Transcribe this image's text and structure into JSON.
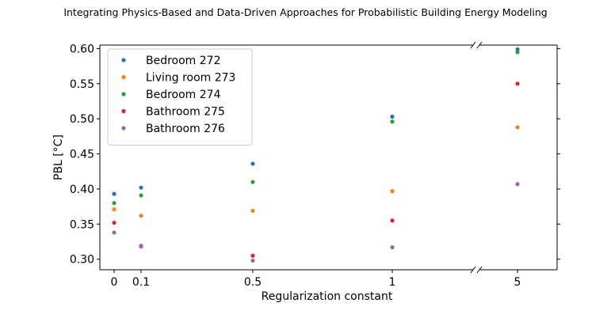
{
  "header": {
    "title": "Integrating Physics-Based and Data-Driven Approaches for Probabilistic Building Energy Modeling"
  },
  "chart_data": {
    "type": "scatter",
    "title": "",
    "xlabel": "Regularization constant",
    "ylabel": "PBL [°C]",
    "x_categories": [
      "0",
      "0.1",
      "0.5",
      "1",
      "5"
    ],
    "x_values": [
      0,
      0.1,
      0.5,
      1,
      5
    ],
    "x_axis_break": "between 1 and 5",
    "ylim": [
      0.285,
      0.605
    ],
    "yticks": [
      0.3,
      0.35,
      0.4,
      0.45,
      0.5,
      0.55,
      0.6
    ],
    "ytick_labels": [
      "0.30",
      "0.35",
      "0.40",
      "0.45",
      "0.50",
      "0.55",
      "0.60"
    ],
    "legend_position": "top-left",
    "grid": false,
    "series": [
      {
        "name": "Bedroom 272",
        "color": "#1f77b4",
        "values": [
          0.393,
          0.402,
          0.436,
          0.503,
          0.599
        ]
      },
      {
        "name": "Living room 273",
        "color": "#ff7f0e",
        "values": [
          0.371,
          0.362,
          0.369,
          0.397,
          0.488
        ]
      },
      {
        "name": "Bedroom 274",
        "color": "#2ca02c",
        "values": [
          0.38,
          0.391,
          0.41,
          0.496,
          0.595
        ]
      },
      {
        "name": "Bathroom 275",
        "color": "#d62728",
        "values": [
          0.352,
          0.319,
          0.305,
          0.355,
          0.55
        ]
      },
      {
        "name": "Bathroom 276",
        "color": "#9467bd",
        "values": [
          0.338,
          0.318,
          0.298,
          0.317,
          0.407
        ]
      }
    ]
  }
}
